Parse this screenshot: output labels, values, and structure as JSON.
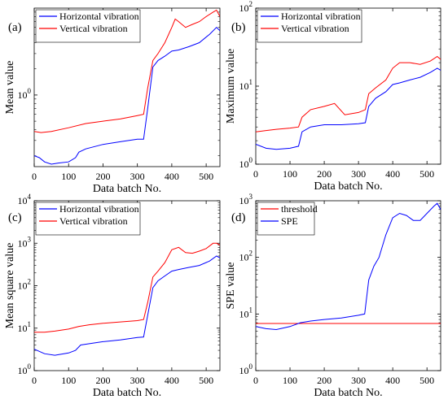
{
  "chart_data": [
    {
      "panel": "(a)",
      "type": "line",
      "xlabel": "Data batch No.",
      "ylabel": "Mean value",
      "yscale": "log",
      "xlim": [
        0,
        540
      ],
      "ylim": [
        0.15,
        10
      ],
      "xticks": [
        0,
        100,
        200,
        300,
        400,
        500
      ],
      "yticks": [
        1
      ],
      "ytick_labels": [
        "10^0"
      ],
      "legend": "top-left",
      "series": [
        {
          "name": "Horizontal vibration",
          "color": "#0000ff",
          "points": [
            [
              0,
              0.2
            ],
            [
              15,
              0.19
            ],
            [
              30,
              0.17
            ],
            [
              50,
              0.16
            ],
            [
              70,
              0.165
            ],
            [
              100,
              0.17
            ],
            [
              120,
              0.19
            ],
            [
              130,
              0.22
            ],
            [
              150,
              0.24
            ],
            [
              200,
              0.27
            ],
            [
              250,
              0.29
            ],
            [
              300,
              0.31
            ],
            [
              318,
              0.31
            ],
            [
              330,
              0.7
            ],
            [
              345,
              2.1
            ],
            [
              360,
              2.5
            ],
            [
              380,
              2.8
            ],
            [
              400,
              3.2
            ],
            [
              420,
              3.3
            ],
            [
              450,
              3.6
            ],
            [
              480,
              4.0
            ],
            [
              510,
              5.0
            ],
            [
              530,
              6.0
            ],
            [
              540,
              5.5
            ]
          ]
        },
        {
          "name": "Vertical vibration",
          "color": "#ff0000",
          "points": [
            [
              0,
              0.38
            ],
            [
              20,
              0.37
            ],
            [
              50,
              0.38
            ],
            [
              100,
              0.42
            ],
            [
              150,
              0.47
            ],
            [
              200,
              0.5
            ],
            [
              250,
              0.53
            ],
            [
              300,
              0.58
            ],
            [
              318,
              0.6
            ],
            [
              330,
              1.2
            ],
            [
              345,
              2.5
            ],
            [
              360,
              3.0
            ],
            [
              380,
              4.0
            ],
            [
              400,
              6.0
            ],
            [
              410,
              7.5
            ],
            [
              420,
              7.0
            ],
            [
              440,
              6.0
            ],
            [
              460,
              6.5
            ],
            [
              480,
              7.0
            ],
            [
              500,
              8.0
            ],
            [
              520,
              9.0
            ],
            [
              530,
              9.5
            ],
            [
              540,
              8.0
            ]
          ]
        }
      ]
    },
    {
      "panel": "(b)",
      "type": "line",
      "xlabel": "Data batch No.",
      "ylabel": "Maximum value",
      "yscale": "log",
      "xlim": [
        0,
        540
      ],
      "ylim": [
        1,
        100
      ],
      "xticks": [
        0,
        100,
        200,
        300,
        400,
        500
      ],
      "yticks": [
        1,
        10,
        100
      ],
      "ytick_labels": [
        "10^0",
        "10^1",
        "10^2"
      ],
      "legend": "top-left",
      "series": [
        {
          "name": "Horizontal vibration",
          "color": "#0000ff",
          "points": [
            [
              0,
              1.8
            ],
            [
              30,
              1.6
            ],
            [
              60,
              1.55
            ],
            [
              100,
              1.6
            ],
            [
              125,
              1.7
            ],
            [
              135,
              2.6
            ],
            [
              160,
              3.0
            ],
            [
              200,
              3.2
            ],
            [
              250,
              3.2
            ],
            [
              300,
              3.3
            ],
            [
              320,
              3.4
            ],
            [
              330,
              5.5
            ],
            [
              350,
              7.0
            ],
            [
              380,
              8.5
            ],
            [
              400,
              10.5
            ],
            [
              420,
              11.0
            ],
            [
              450,
              12.0
            ],
            [
              480,
              13.0
            ],
            [
              510,
              15.0
            ],
            [
              530,
              17.0
            ],
            [
              540,
              16.0
            ]
          ]
        },
        {
          "name": "Vertical vibration",
          "color": "#ff0000",
          "points": [
            [
              0,
              2.6
            ],
            [
              30,
              2.7
            ],
            [
              60,
              2.8
            ],
            [
              100,
              2.9
            ],
            [
              125,
              3.0
            ],
            [
              135,
              4.0
            ],
            [
              160,
              5.0
            ],
            [
              200,
              5.5
            ],
            [
              230,
              6.0
            ],
            [
              260,
              4.3
            ],
            [
              300,
              4.6
            ],
            [
              320,
              5.0
            ],
            [
              330,
              8.0
            ],
            [
              350,
              9.5
            ],
            [
              380,
              12.0
            ],
            [
              400,
              17.0
            ],
            [
              420,
              20.0
            ],
            [
              450,
              20.0
            ],
            [
              480,
              19.0
            ],
            [
              510,
              21.0
            ],
            [
              530,
              24.0
            ],
            [
              540,
              22.0
            ]
          ]
        }
      ]
    },
    {
      "panel": "(c)",
      "type": "line",
      "xlabel": "Data batch No.",
      "ylabel": "Mean square value",
      "yscale": "log",
      "xlim": [
        0,
        540
      ],
      "ylim": [
        1,
        10000
      ],
      "xticks": [
        0,
        100,
        200,
        300,
        400,
        500
      ],
      "yticks": [
        1,
        10,
        100,
        1000,
        10000
      ],
      "ytick_labels": [
        "10^0",
        "10^1",
        "10^2",
        "10^3",
        "10^4"
      ],
      "legend": "top-left",
      "series": [
        {
          "name": "Horizontal vibration",
          "color": "#0000ff",
          "points": [
            [
              0,
              3.2
            ],
            [
              30,
              2.5
            ],
            [
              60,
              2.3
            ],
            [
              100,
              2.6
            ],
            [
              120,
              3.0
            ],
            [
              135,
              4.0
            ],
            [
              160,
              4.3
            ],
            [
              200,
              4.8
            ],
            [
              250,
              5.3
            ],
            [
              300,
              6.0
            ],
            [
              318,
              6.2
            ],
            [
              330,
              20
            ],
            [
              345,
              90
            ],
            [
              360,
              130
            ],
            [
              380,
              170
            ],
            [
              400,
              220
            ],
            [
              420,
              240
            ],
            [
              450,
              270
            ],
            [
              480,
              300
            ],
            [
              510,
              380
            ],
            [
              530,
              500
            ],
            [
              540,
              450
            ]
          ]
        },
        {
          "name": "Vertical vibration",
          "color": "#ff0000",
          "points": [
            [
              0,
              8
            ],
            [
              30,
              8
            ],
            [
              60,
              8.5
            ],
            [
              100,
              9.5
            ],
            [
              130,
              11
            ],
            [
              160,
              12
            ],
            [
              200,
              13
            ],
            [
              250,
              14
            ],
            [
              300,
              15
            ],
            [
              318,
              16
            ],
            [
              330,
              40
            ],
            [
              345,
              160
            ],
            [
              360,
              220
            ],
            [
              380,
              350
            ],
            [
              400,
              700
            ],
            [
              420,
              800
            ],
            [
              440,
              600
            ],
            [
              460,
              580
            ],
            [
              480,
              650
            ],
            [
              500,
              750
            ],
            [
              520,
              1000
            ],
            [
              530,
              1000
            ],
            [
              540,
              900
            ]
          ]
        }
      ]
    },
    {
      "panel": "(d)",
      "type": "line",
      "xlabel": "Data batch No.",
      "ylabel": "SPE value",
      "yscale": "log",
      "xlim": [
        0,
        540
      ],
      "ylim": [
        1,
        1000
      ],
      "xticks": [
        0,
        100,
        200,
        300,
        400,
        500
      ],
      "yticks": [
        1,
        10,
        100,
        1000
      ],
      "ytick_labels": [
        "10^0",
        "10^1",
        "10^2",
        "10^3"
      ],
      "legend": "top-left",
      "series": [
        {
          "name": "threshold",
          "color": "#ff0000",
          "points": [
            [
              0,
              6.8
            ],
            [
              540,
              6.8
            ]
          ]
        },
        {
          "name": "SPE",
          "color": "#0000ff",
          "points": [
            [
              0,
              6
            ],
            [
              30,
              5.5
            ],
            [
              60,
              5.3
            ],
            [
              100,
              6
            ],
            [
              130,
              7
            ],
            [
              160,
              7.5
            ],
            [
              200,
              8
            ],
            [
              250,
              8.5
            ],
            [
              300,
              9.5
            ],
            [
              318,
              10
            ],
            [
              330,
              40
            ],
            [
              345,
              70
            ],
            [
              360,
              100
            ],
            [
              380,
              250
            ],
            [
              400,
              500
            ],
            [
              420,
              600
            ],
            [
              440,
              550
            ],
            [
              460,
              450
            ],
            [
              480,
              450
            ],
            [
              500,
              600
            ],
            [
              520,
              800
            ],
            [
              530,
              900
            ],
            [
              540,
              700
            ]
          ]
        }
      ]
    }
  ]
}
